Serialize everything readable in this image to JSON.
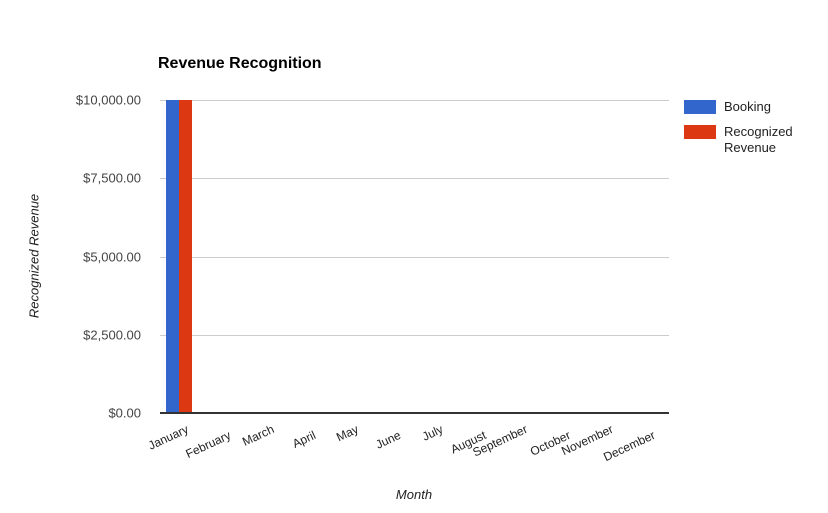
{
  "chart_data": {
    "type": "bar",
    "title": "Revenue Recognition",
    "xlabel": "Month",
    "ylabel": "Recognized Revenue",
    "ylim": [
      0,
      10000
    ],
    "yticks": [
      "$0.00",
      "$2,500.00",
      "$5,000.00",
      "$7,500.00",
      "$10,000.00"
    ],
    "categories": [
      "January",
      "February",
      "March",
      "April",
      "May",
      "June",
      "July",
      "August",
      "September",
      "October",
      "November",
      "December"
    ],
    "series": [
      {
        "name": "Booking",
        "color": "#3366cc",
        "values": [
          10000,
          0,
          0,
          0,
          0,
          0,
          0,
          0,
          0,
          0,
          0,
          0
        ]
      },
      {
        "name": "Recognized Revenue",
        "color": "#dc3912",
        "values": [
          10000,
          0,
          0,
          0,
          0,
          0,
          0,
          0,
          0,
          0,
          0,
          0
        ]
      }
    ],
    "grid": true,
    "legend_position": "right"
  }
}
